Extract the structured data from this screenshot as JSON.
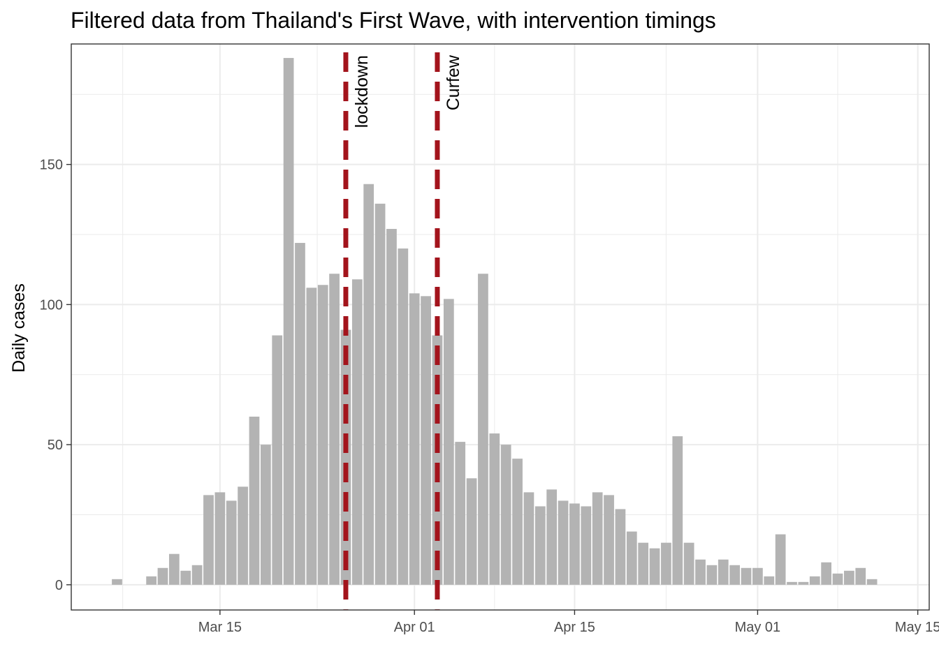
{
  "chart_data": {
    "type": "bar",
    "title": "Filtered data from Thailand's First Wave, with intervention timings",
    "xlabel": "",
    "ylabel": "Daily cases",
    "x_type": "date",
    "start_date": "2020-03-06",
    "values": [
      2,
      0,
      0,
      3,
      6,
      11,
      5,
      7,
      32,
      33,
      30,
      35,
      60,
      50,
      89,
      188,
      122,
      106,
      107,
      111,
      91,
      109,
      143,
      136,
      127,
      120,
      104,
      103,
      89,
      102,
      51,
      38,
      111,
      54,
      50,
      45,
      33,
      28,
      34,
      30,
      29,
      28,
      33,
      32,
      27,
      19,
      15,
      13,
      15,
      53,
      15,
      9,
      7,
      9,
      7,
      6,
      6,
      3,
      18,
      1,
      1,
      3,
      8,
      4,
      5,
      6,
      2
    ],
    "xlim": [
      "2020-03-02",
      "2020-05-16"
    ],
    "ylim": [
      -9,
      193
    ],
    "x_ticks": [
      {
        "date": "2020-03-15",
        "label": "Mar 15"
      },
      {
        "date": "2020-04-01",
        "label": "Apr 01"
      },
      {
        "date": "2020-04-15",
        "label": "Apr 15"
      },
      {
        "date": "2020-05-01",
        "label": "May 01"
      },
      {
        "date": "2020-05-15",
        "label": "May 15"
      }
    ],
    "y_ticks": [
      0,
      50,
      100,
      150
    ],
    "grid": true,
    "bar_color": "#b3b3b3",
    "interventions": [
      {
        "date": "2020-03-26",
        "label": "lockdown",
        "color": "#a3141c"
      },
      {
        "date": "2020-04-03",
        "label": "Curfew",
        "color": "#a3141c"
      }
    ]
  }
}
